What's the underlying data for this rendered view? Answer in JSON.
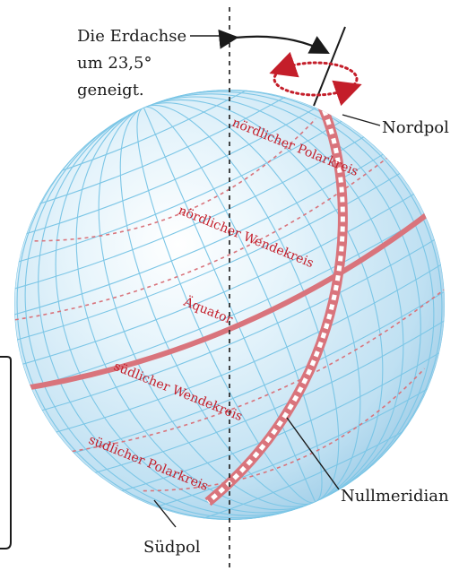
{
  "labels": {
    "axis_line1": "Die Erdachse",
    "axis_line2": "um 23,5°",
    "axis_line3": "geneigt.",
    "north_pole": "Nordpol",
    "south_pole": "Südpol",
    "prime_meridian": "Nullmeridian",
    "arctic_circle": "nördlicher Polarkreis",
    "tropic_cancer": "nördlicher Wendekreis",
    "equator": "Äquator",
    "tropic_capricorn": "südlicher Wendekreis",
    "antarctic_circle": "südlicher Polarkreis"
  },
  "colors": {
    "globe_light": "#eaf6fc",
    "globe_dark": "#aad3ec",
    "grid": "#7cc6e6",
    "red": "#c41e2a",
    "equator_band": "#d9747c",
    "text": "#1a1a1a"
  },
  "tilt_degrees": 23.5
}
